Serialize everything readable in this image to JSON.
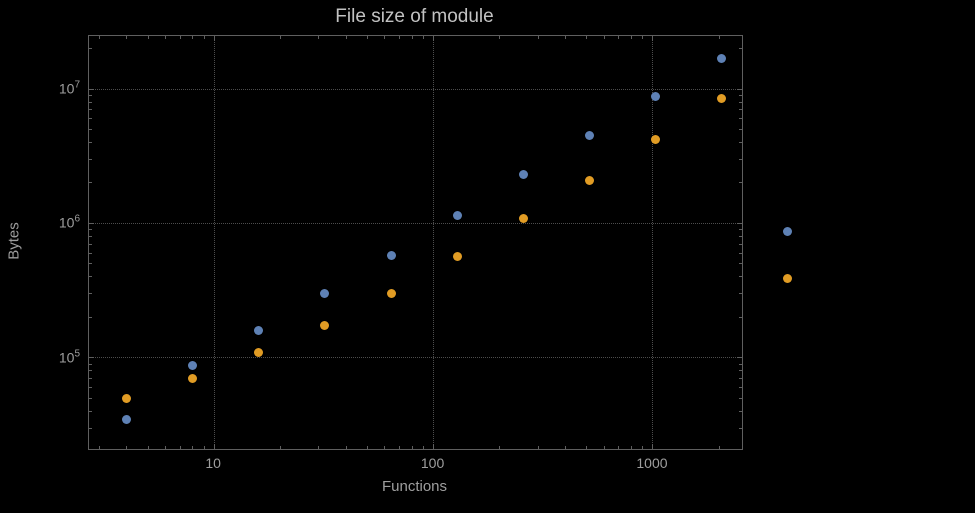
{
  "colors": {
    "background": "#000000",
    "frame": "#5f5f5f",
    "grid": "#4d4d4d",
    "text": "#9e9e9e",
    "title": "#c2c2c2",
    "series_blue": "#5e81b5",
    "series_orange": "#e19c24"
  },
  "chart_data": {
    "type": "scatter",
    "title": "File size of module",
    "xlabel": "Functions",
    "ylabel": "Bytes",
    "x_scale": "log",
    "y_scale": "log",
    "xlim": [
      2.69,
      2545
    ],
    "ylim": [
      21000,
      24800000
    ],
    "grid": true,
    "legend": "none",
    "x": [
      4,
      8,
      16,
      32,
      64,
      128,
      256,
      512,
      1024,
      2048,
      4096
    ],
    "series": [
      {
        "name": "series-blue",
        "color": "#5e81b5",
        "values": [
          35000,
          88000,
          160000,
          300000,
          580000,
          1150000,
          2300000,
          4500000,
          8800000,
          17000000,
          870000
        ]
      },
      {
        "name": "series-orange",
        "color": "#e19c24",
        "values": [
          50000,
          70000,
          110000,
          175000,
          300000,
          570000,
          1080000,
          2100000,
          4200000,
          8500000,
          390000
        ]
      }
    ],
    "x_ticks": [
      {
        "v": 10,
        "label": "10"
      },
      {
        "v": 100,
        "label": "100"
      },
      {
        "v": 1000,
        "label": "1000"
      }
    ],
    "y_ticks": [
      {
        "v": 100000,
        "base": "10",
        "exp": "5"
      },
      {
        "v": 1000000,
        "base": "10",
        "exp": "6"
      },
      {
        "v": 10000000,
        "base": "10",
        "exp": "7"
      }
    ]
  }
}
